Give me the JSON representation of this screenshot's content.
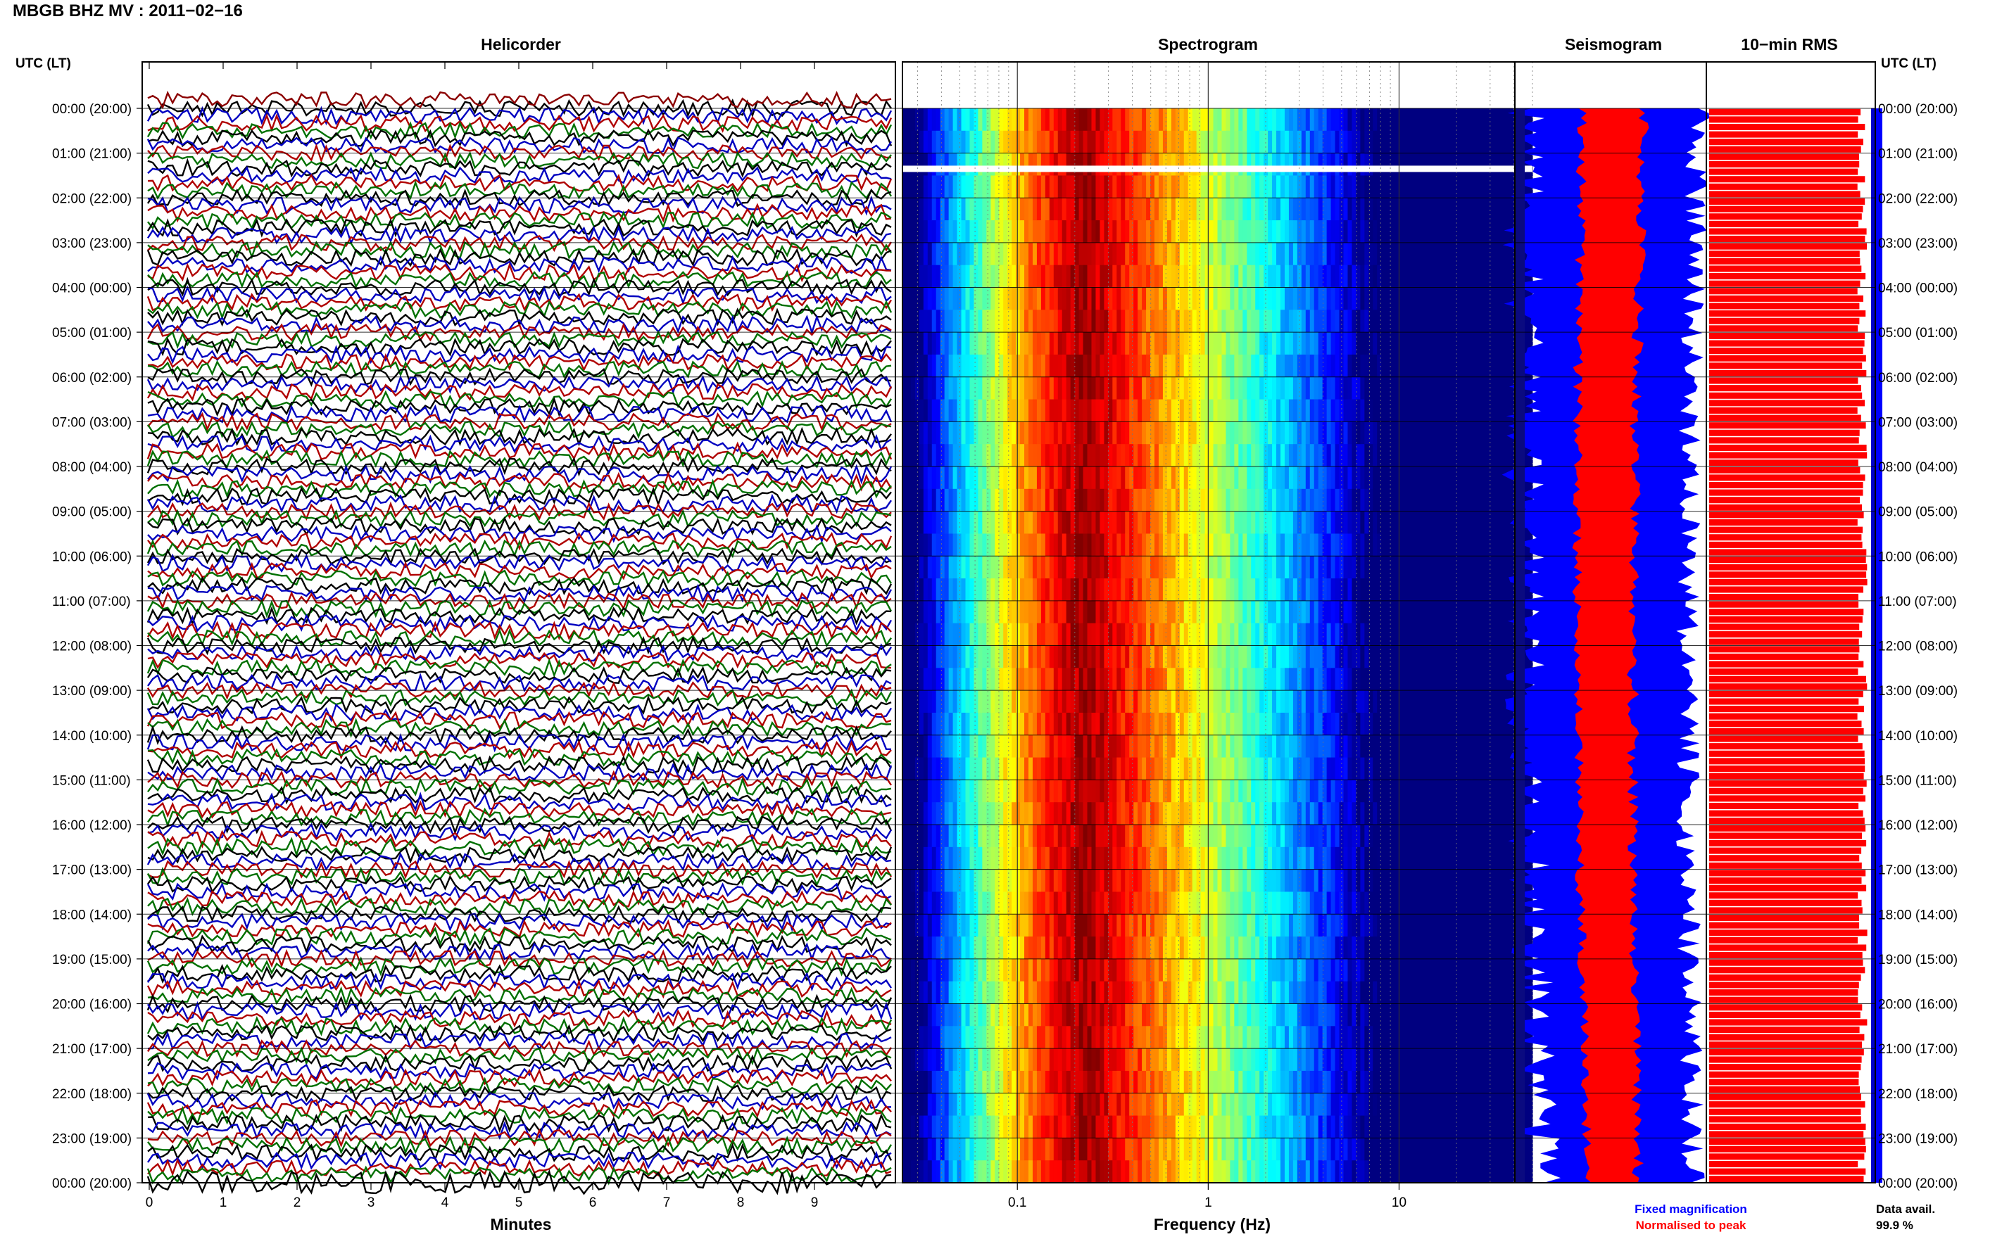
{
  "header": {
    "station": "MBGB BHZ MV : 2011−02−16",
    "utc_label_left": "UTC (LT)",
    "utc_label_right": "UTC (LT)"
  },
  "panels": {
    "helicorder_title": "Helicorder",
    "spectrogram_title": "Spectrogram",
    "seismogram_title": "Seismogram",
    "rms_title": "10−min RMS"
  },
  "axes": {
    "helicorder_xlabel": "Minutes",
    "spectrogram_xlabel": "Frequency (Hz)"
  },
  "legend": {
    "fixed": "Fixed magnification",
    "normalised": "Normalised to peak",
    "fixed_color": "#0000ff",
    "normalised_color": "#ff0000"
  },
  "data_avail": {
    "label": "Data avail.",
    "value": "99.9 %"
  },
  "colors": {
    "trace_cycle": [
      "#000000",
      "#0000c0",
      "#b00000",
      "#007000"
    ],
    "rms_bar": "#ff0000",
    "rms_edge": "#0000cc"
  },
  "chart_data": [
    {
      "type": "line",
      "title": "Helicorder",
      "xlabel": "Minutes",
      "xlim": [
        0,
        10
      ],
      "x_ticks": [
        0,
        1,
        2,
        3,
        4,
        5,
        6,
        7,
        8,
        9
      ],
      "y_tick_labels": [
        "00:00 (20:00)",
        "01:00 (21:00)",
        "02:00 (22:00)",
        "03:00 (23:00)",
        "04:00 (00:00)",
        "05:00 (01:00)",
        "06:00 (02:00)",
        "07:00 (03:00)",
        "08:00 (04:00)",
        "09:00 (05:00)",
        "10:00 (06:00)",
        "11:00 (07:00)",
        "12:00 (08:00)",
        "13:00 (09:00)",
        "14:00 (10:00)",
        "15:00 (11:00)",
        "16:00 (12:00)",
        "17:00 (13:00)",
        "18:00 (14:00)",
        "19:00 (15:00)",
        "20:00 (16:00)",
        "21:00 (17:00)",
        "22:00 (18:00)",
        "23:00 (19:00)",
        "00:00 (20:00)"
      ],
      "lines_per_hour": 6,
      "minutes_per_line": 10
    },
    {
      "type": "heatmap",
      "title": "Spectrogram",
      "xlabel": "Frequency (Hz)",
      "x_scale": "log",
      "xlim": [
        0.025,
        50
      ],
      "x_tick_labels": [
        "0.1",
        "1",
        "10"
      ],
      "x_tick_values": [
        0.1,
        1,
        10
      ],
      "grid": true,
      "peak_frequency_band_hz": [
        0.18,
        0.3
      ],
      "colormap": "jet"
    },
    {
      "type": "area",
      "title": "Seismogram",
      "series": [
        {
          "name": "Fixed magnification",
          "color": "#0000ff"
        },
        {
          "name": "Normalised to peak",
          "color": "#ff0000"
        }
      ]
    },
    {
      "type": "bar",
      "title": "10−min RMS",
      "orientation": "horizontal",
      "bars_per_hour": 6,
      "relative_level": 0.93
    }
  ]
}
